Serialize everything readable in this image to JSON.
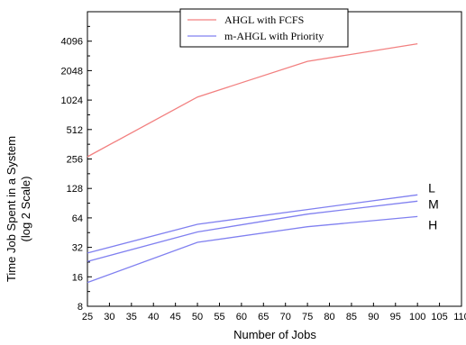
{
  "chart_data": {
    "type": "line",
    "xlabel": "Number of Jobs",
    "ylabel": "Time Job Spent in a System",
    "ylabel_sub": "(log 2 Scale)",
    "x_scale": "linear",
    "y_scale": "log2",
    "xlim": [
      25,
      110
    ],
    "ylim": [
      8,
      8192
    ],
    "x_ticks": [
      "25",
      "30",
      "35",
      "40",
      "45",
      "50",
      "55",
      "60",
      "65",
      "70",
      "75",
      "80",
      "85",
      "90",
      "95",
      "100",
      "105",
      "110"
    ],
    "y_ticks": [
      "8",
      "16",
      "32",
      "64",
      "128",
      "256",
      "512",
      "1024",
      "2048",
      "4096"
    ],
    "grid": false,
    "legend_position": "top-center",
    "legend": [
      "AHGL with FCFS",
      "m-AHGL with Priority"
    ],
    "series": [
      {
        "name": "AHGL with FCFS",
        "color": "#f28080",
        "x": [
          25,
          50,
          75,
          100
        ],
        "y": [
          270,
          1100,
          2550,
          3850
        ]
      },
      {
        "name": "m-AHGL with Priority",
        "label": "L",
        "color": "#8080f0",
        "x": [
          25,
          50,
          75,
          100
        ],
        "y": [
          28,
          55,
          78,
          110
        ]
      },
      {
        "name": "m-AHGL with Priority",
        "label": "M",
        "color": "#8080f0",
        "x": [
          25,
          50,
          75,
          100
        ],
        "y": [
          23,
          46,
          70,
          95
        ]
      },
      {
        "name": "m-AHGL with Priority",
        "label": "H",
        "color": "#8080f0",
        "x": [
          25,
          50,
          75,
          100
        ],
        "y": [
          14,
          36,
          52,
          66
        ]
      }
    ]
  }
}
